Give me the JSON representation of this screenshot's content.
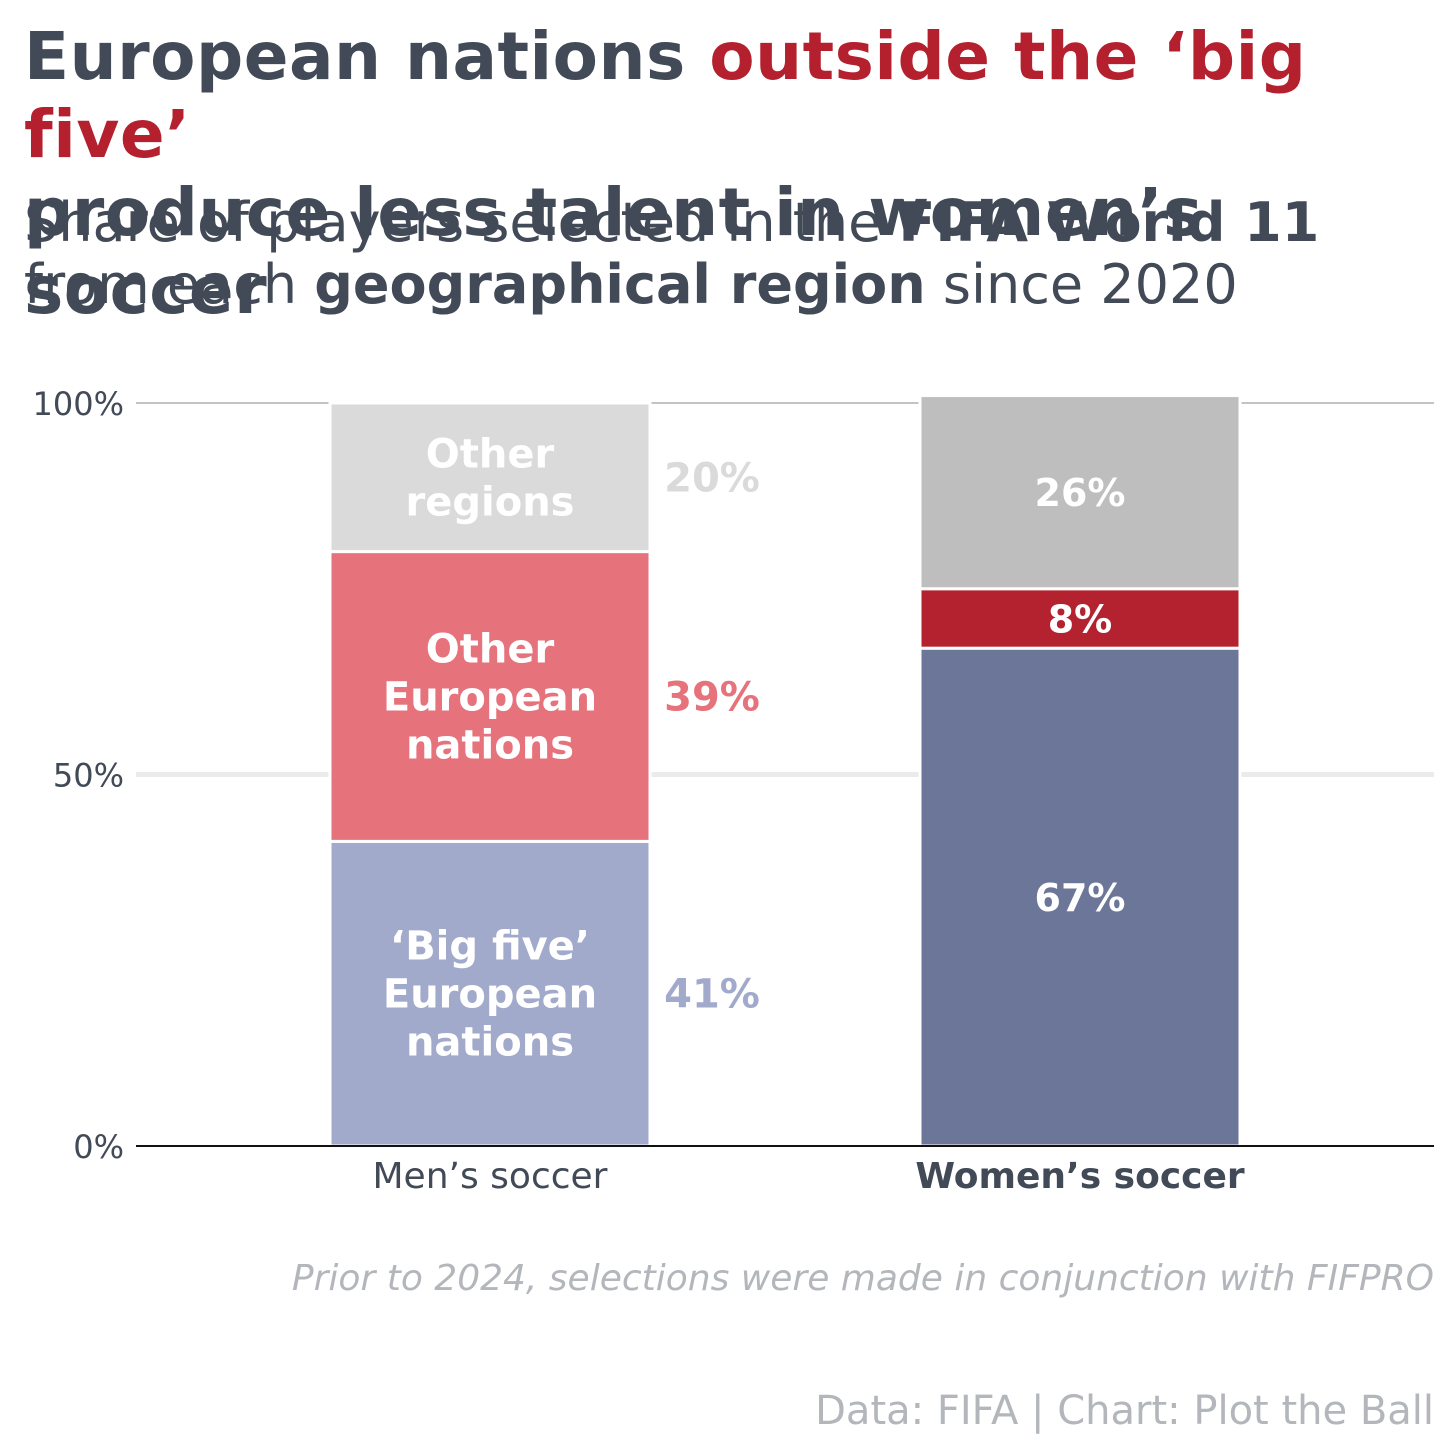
{
  "title": {
    "part1": "European nations ",
    "part2": "outside the ‘big five’",
    "part3": "produce less talent in women’s soccer"
  },
  "subtitle": {
    "part1": "Share of players selected in the ",
    "part2": "FIFA World 11",
    "part3": "from each ",
    "part4": "geographical region",
    "part5": " since 2020"
  },
  "note": "Prior to 2024, selections were made in conjunction with FIFPRO",
  "credit": "Data: FIFA | Chart: Plot the Ball",
  "colors": {
    "text": "#414a56",
    "highlight": "#b5202e",
    "men_big_five": "#a2aacb",
    "men_other_europe": "#e6727b",
    "men_other_regions": "#dadada",
    "women_big_five": "#6c7698",
    "women_other_europe": "#b5222f",
    "women_other_regions": "#bebebe"
  },
  "chart_data": {
    "type": "bar",
    "stacked": true,
    "categories": [
      "Men’s soccer",
      "Women’s soccer"
    ],
    "series": [
      {
        "name": "‘Big five’ European nations",
        "values": [
          41,
          67
        ],
        "labels": [
          "41%",
          "67%"
        ],
        "colors": [
          "#a2aacb",
          "#6c7698"
        ]
      },
      {
        "name": "Other European nations",
        "values": [
          39,
          8
        ],
        "labels": [
          "39%",
          "8%"
        ],
        "colors": [
          "#e6727b",
          "#b5222f"
        ]
      },
      {
        "name": "Other regions",
        "values": [
          20,
          26
        ],
        "labels": [
          "20%",
          "26%"
        ],
        "colors": [
          "#dadada",
          "#bebebe"
        ]
      }
    ],
    "segment_names": [
      [
        "‘Big five’",
        "European",
        "nations"
      ],
      [
        "Other",
        "European",
        "nations"
      ],
      [
        "Other",
        "regions"
      ]
    ],
    "yticks": [
      {
        "value": 0,
        "label": "0%"
      },
      {
        "value": 50,
        "label": "50%"
      },
      {
        "value": 100,
        "label": "100%"
      }
    ],
    "ylim": [
      0,
      100
    ],
    "grid": true
  }
}
